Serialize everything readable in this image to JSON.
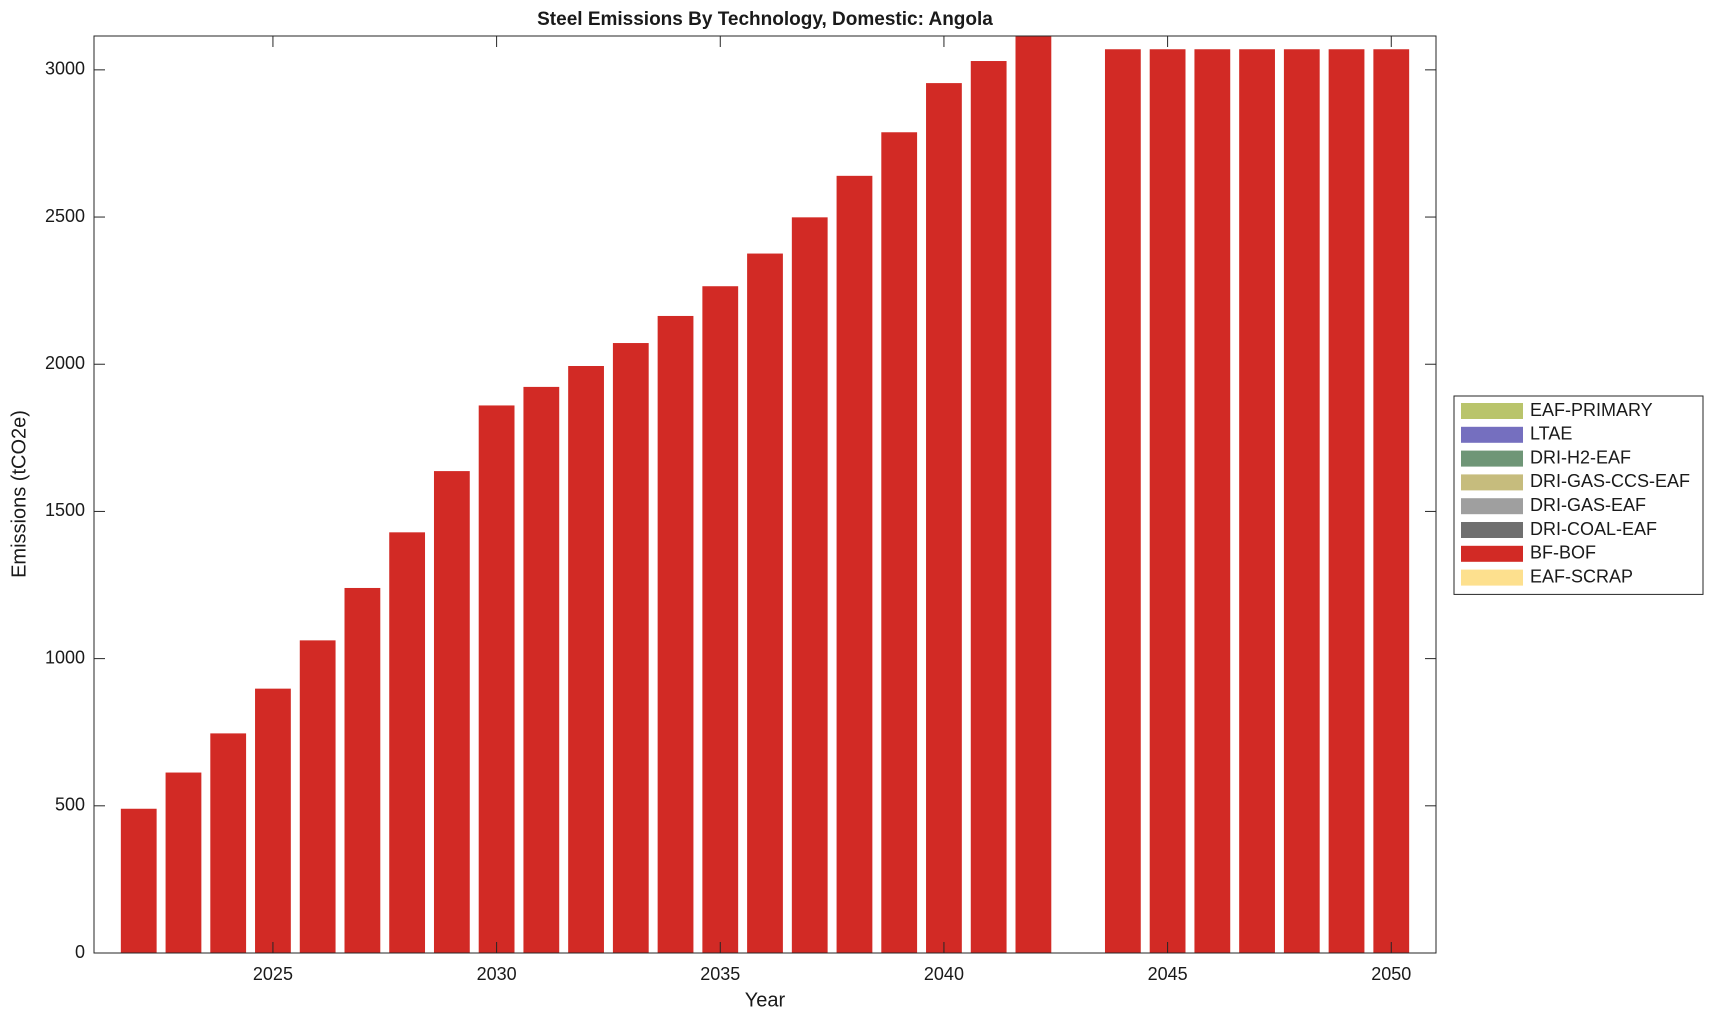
{
  "chart_data": {
    "type": "stacked_bar",
    "title": "Steel Emissions By Technology, Domestic: Angola",
    "x_label": "Year",
    "y_label": "Emissions (tCO2e)",
    "x": [
      2022,
      2023,
      2024,
      2025,
      2026,
      2027,
      2028,
      2029,
      2030,
      2031,
      2032,
      2033,
      2034,
      2035,
      2036,
      2037,
      2038,
      2039,
      2040,
      2041,
      2042,
      2043,
      2044,
      2045,
      2046,
      2047,
      2048,
      2049,
      2050
    ],
    "series": [
      {
        "name": "EAF-PRIMARY",
        "color": "#b9c46b",
        "values": [
          0,
          0,
          0,
          0,
          0,
          0,
          0,
          0,
          0,
          0,
          0,
          0,
          0,
          0,
          0,
          0,
          0,
          0,
          0,
          0,
          0,
          null,
          0,
          0,
          0,
          0,
          0,
          0,
          0
        ]
      },
      {
        "name": "LTAE",
        "color": "#756fbf",
        "values": [
          0,
          0,
          0,
          0,
          0,
          0,
          0,
          0,
          0,
          0,
          0,
          0,
          0,
          0,
          0,
          0,
          0,
          0,
          0,
          0,
          0,
          null,
          0,
          0,
          0,
          0,
          0,
          0,
          0
        ]
      },
      {
        "name": "DRI-H2-EAF",
        "color": "#6f9677",
        "values": [
          0,
          0,
          0,
          0,
          0,
          0,
          0,
          0,
          0,
          0,
          0,
          0,
          0,
          0,
          0,
          0,
          0,
          0,
          0,
          0,
          0,
          null,
          0,
          0,
          0,
          0,
          0,
          0,
          0
        ]
      },
      {
        "name": "DRI-GAS-CCS-EAF",
        "color": "#c6bc7d",
        "values": [
          0,
          0,
          0,
          0,
          0,
          0,
          0,
          0,
          0,
          0,
          0,
          0,
          0,
          0,
          0,
          0,
          0,
          0,
          0,
          0,
          0,
          null,
          0,
          0,
          0,
          0,
          0,
          0,
          0
        ]
      },
      {
        "name": "DRI-GAS-EAF",
        "color": "#9f9f9f",
        "values": [
          0,
          0,
          0,
          0,
          0,
          0,
          0,
          0,
          0,
          0,
          0,
          0,
          0,
          0,
          0,
          0,
          0,
          0,
          0,
          0,
          0,
          null,
          0,
          0,
          0,
          0,
          0,
          0,
          0
        ]
      },
      {
        "name": "DRI-COAL-EAF",
        "color": "#6f6f6f",
        "values": [
          0,
          0,
          0,
          0,
          0,
          0,
          0,
          0,
          0,
          0,
          0,
          0,
          0,
          0,
          0,
          0,
          0,
          0,
          0,
          0,
          0,
          null,
          0,
          0,
          0,
          0,
          0,
          0,
          0
        ]
      },
      {
        "name": "BF-BOF",
        "color": "#d22a25",
        "values": [
          490,
          613,
          746,
          898,
          1062,
          1240,
          1429,
          1637,
          1860,
          1923,
          1994,
          2072,
          2164,
          2265,
          2376,
          2499,
          2640,
          2788,
          2955,
          3030,
          3115,
          null,
          3070,
          3070,
          3070,
          3070,
          3070,
          3070,
          3070
        ]
      },
      {
        "name": "EAF-SCRAP",
        "color": "#fde08e",
        "values": [
          0,
          0,
          0,
          0,
          0,
          0,
          0,
          0,
          0,
          0,
          0,
          0,
          0,
          0,
          0,
          0,
          0,
          0,
          0,
          0,
          0,
          null,
          0,
          0,
          0,
          0,
          0,
          0,
          0
        ]
      }
    ],
    "xlim": [
      2021,
      2051
    ],
    "xticks": [
      2025,
      2030,
      2035,
      2040,
      2045,
      2050
    ],
    "ylim": [
      0,
      3115
    ],
    "yticks": [
      0,
      500,
      1000,
      1500,
      2000,
      2500,
      3000
    ],
    "legend": "outside-right"
  }
}
